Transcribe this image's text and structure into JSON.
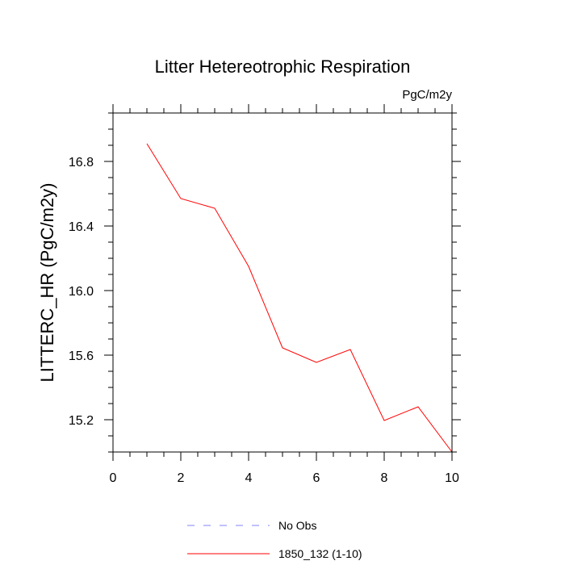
{
  "chart_data": {
    "type": "line",
    "title": "Litter Hetereotrophic Respiration",
    "units_label": "PgC/m2y",
    "ylabel": "LITTERC_HR  (PgC/m2y)",
    "xlabel": "",
    "xlim": [
      0,
      10
    ],
    "ylim": [
      15.0,
      17.1
    ],
    "x_ticks": [
      0,
      2,
      4,
      6,
      8,
      10
    ],
    "x_tick_labels": [
      "0",
      "2",
      "4",
      "6",
      "8",
      "10"
    ],
    "x_minor_step": 0.5,
    "y_ticks": [
      15.2,
      15.6,
      16.0,
      16.4,
      16.8
    ],
    "y_tick_labels": [
      "15.2",
      "15.6",
      "16.0",
      "16.4",
      "16.8"
    ],
    "y_minor_step": 0.1,
    "grid": false,
    "legend_position": "bottom",
    "series": [
      {
        "name": "1850_132 (1-10)",
        "color": "#ff0000",
        "style": "solid",
        "x": [
          1,
          2,
          3,
          4,
          5,
          6,
          7,
          8,
          9,
          10
        ],
        "y": [
          16.91,
          16.57,
          16.51,
          16.15,
          15.645,
          15.555,
          15.635,
          15.195,
          15.28,
          15.0
        ]
      }
    ],
    "legend": [
      {
        "label": "No Obs",
        "color": "#8080ff",
        "style": "dashed"
      },
      {
        "label": "1850_132 (1-10)",
        "color": "#ff0000",
        "style": "solid"
      }
    ]
  }
}
